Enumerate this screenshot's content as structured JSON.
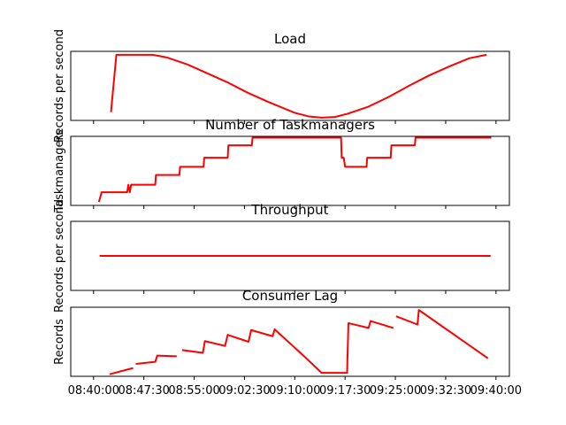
{
  "chart_data": [
    {
      "type": "line",
      "title": "Load",
      "ylabel": "Records per second",
      "line_color": "#ff0000",
      "y_ticks_shown": false,
      "ylim": [
        0,
        1
      ],
      "x": [
        2.6,
        3.4,
        8.8,
        11,
        14,
        17,
        20,
        23,
        26,
        30,
        32,
        34,
        36,
        38,
        41,
        44,
        47,
        50,
        53,
        56,
        58.6
      ],
      "series": [
        {
          "values": [
            0.12,
            0.95,
            0.95,
            0.91,
            0.81,
            0.68,
            0.55,
            0.4,
            0.27,
            0.11,
            0.06,
            0.04,
            0.05,
            0.1,
            0.2,
            0.34,
            0.5,
            0.65,
            0.78,
            0.9,
            0.95
          ]
        }
      ]
    },
    {
      "type": "line",
      "title": "Number of Taskmanagers",
      "ylabel": "Taskmanagers",
      "line_color": "#ff0000",
      "y_ticks_shown": false,
      "ylim": [
        0,
        1
      ],
      "x": [
        0.8,
        1.2,
        5.0,
        5.2,
        5.4,
        5.6,
        6.0,
        9.2,
        9.3,
        12.8,
        12.9,
        16.4,
        16.5,
        20.0,
        20.1,
        23.6,
        23.7,
        27.2,
        27.3,
        36.9,
        37.0,
        37.3,
        37.5,
        40.7,
        40.8,
        44.3,
        44.4,
        47.9,
        48.0,
        59.3
      ],
      "series": [
        {
          "values": [
            0.05,
            0.19,
            0.19,
            0.3,
            0.19,
            0.3,
            0.3,
            0.3,
            0.44,
            0.44,
            0.56,
            0.56,
            0.69,
            0.69,
            0.87,
            0.87,
            0.98,
            0.98,
            0.98,
            0.98,
            0.69,
            0.69,
            0.56,
            0.56,
            0.69,
            0.69,
            0.87,
            0.87,
            0.98,
            0.98
          ]
        }
      ]
    },
    {
      "type": "line",
      "title": "Throughput",
      "ylabel": "Records per second",
      "line_color": "#ff0000",
      "y_ticks_shown": false,
      "ylim": [
        0,
        1
      ],
      "x": [
        0.9,
        59.2
      ],
      "series": [
        {
          "values": [
            0.5,
            0.5
          ]
        }
      ]
    },
    {
      "type": "line",
      "title": "Consumer Lag",
      "ylabel": "Records",
      "line_color": "#ff0000",
      "y_ticks_shown": false,
      "ylim": [
        0,
        1
      ],
      "x": [
        2.4,
        5.9,
        null,
        6.3,
        9.2,
        9.5,
        12.4,
        null,
        13.2,
        16.3,
        16.6,
        19.6,
        20.0,
        23.1,
        23.5,
        26.7,
        27.0,
        31.5,
        34.0,
        37.8,
        38.0,
        41.0,
        41.3,
        44.7,
        null,
        45.1,
        48.3,
        48.5,
        58.8
      ],
      "series": [
        {
          "values": [
            0.03,
            0.12,
            null,
            0.18,
            0.21,
            0.3,
            0.29,
            null,
            0.38,
            0.34,
            0.51,
            0.44,
            0.6,
            0.5,
            0.67,
            0.58,
            0.68,
            0.28,
            0.05,
            0.05,
            0.77,
            0.7,
            0.8,
            0.7,
            null,
            0.87,
            0.75,
            0.96,
            0.26
          ]
        }
      ]
    }
  ],
  "x_axis": {
    "xlim": [
      -3.4,
      62.0
    ],
    "tick_values": [
      0,
      7.5,
      15,
      22.5,
      30,
      37.5,
      45,
      52.5,
      60
    ],
    "tick_labels": [
      "08:40:00",
      "08:47:30",
      "08:55:00",
      "09:02:30",
      "09:10:00",
      "09:17:30",
      "09:25:00",
      "09:32:30",
      "09:40:00"
    ]
  }
}
